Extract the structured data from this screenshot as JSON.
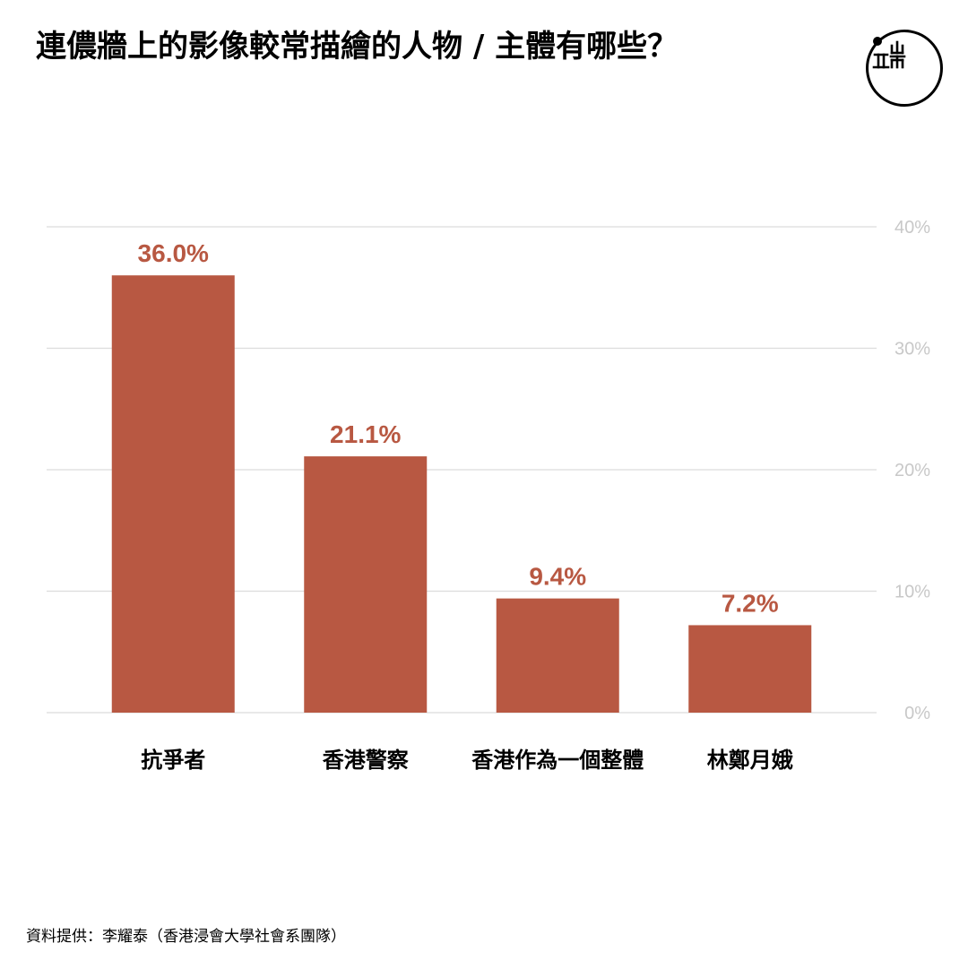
{
  "title": "連儂牆上的影像較常描繪的人物 / 主體有哪些？",
  "source": "資料提供：李耀泰（香港浸會大學社會系團隊）",
  "colors": {
    "bar": "#b85842",
    "value_label": "#b85842",
    "grid": "#dcdcdc",
    "axis_tick": "#c8c8c8",
    "category": "#000000"
  },
  "logo": {
    "icon": "initium-logo-icon"
  },
  "chart_data": {
    "type": "bar",
    "title": "連儂牆上的影像較常描繪的人物 / 主體有哪些？",
    "categories": [
      "抗爭者",
      "香港警察",
      "香港作為一個整體",
      "林鄭月娥"
    ],
    "values": [
      36.0,
      21.1,
      9.4,
      7.2
    ],
    "value_labels": [
      "36.0%",
      "21.1%",
      "9.4%",
      "7.2%"
    ],
    "xlabel": "",
    "ylabel": "",
    "ylim": [
      0,
      40
    ],
    "yticks": [
      0,
      10,
      20,
      30,
      40
    ],
    "ytick_labels": [
      "0%",
      "10%",
      "20%",
      "30%",
      "40%"
    ],
    "y_axis_side": "right",
    "grid": true,
    "legend": false
  }
}
